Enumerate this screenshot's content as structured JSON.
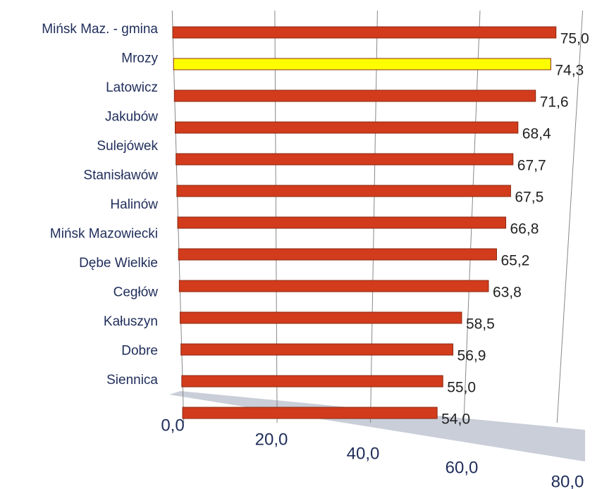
{
  "chart_data": {
    "type": "bar",
    "orientation": "horizontal",
    "categories": [
      "Mińsk Maz. - gmina",
      "Mrozy",
      "Latowicz",
      "Jakubów",
      "Sulejówek",
      "Stanisławów",
      "Halinów",
      "Mińsk Mazowiecki",
      "Dębe Wielkie",
      "Cegłów",
      "Kałuszyn",
      "Dobre",
      "Siennica"
    ],
    "values": [
      75.0,
      74.3,
      71.6,
      68.4,
      67.7,
      67.5,
      66.8,
      65.2,
      63.8,
      58.5,
      56.9,
      55.0,
      54.0
    ],
    "value_labels": [
      "75,0",
      "74,3",
      "71,6",
      "68,4",
      "67,7",
      "67,5",
      "66,8",
      "65,2",
      "63,8",
      "58,5",
      "56,9",
      "55,0",
      "54,0"
    ],
    "colors": [
      "#d23b1c",
      "#ffff00",
      "#d23b1c",
      "#d23b1c",
      "#d23b1c",
      "#d23b1c",
      "#d23b1c",
      "#d23b1c",
      "#d23b1c",
      "#d23b1c",
      "#d23b1c",
      "#d23b1c",
      "#d23b1c"
    ],
    "xlim": [
      0,
      80
    ],
    "xticks": [
      {
        "value": 0,
        "label": "0,0"
      },
      {
        "value": 20,
        "label": "20,0"
      },
      {
        "value": 40,
        "label": "40,0"
      },
      {
        "value": 60,
        "label": "60,0"
      },
      {
        "value": 80,
        "label": "80,0"
      }
    ],
    "grid": true
  }
}
